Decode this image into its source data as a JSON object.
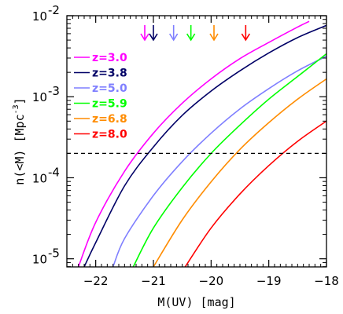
{
  "chart_data": {
    "type": "line",
    "xlabel": "M(UV)  [mag]",
    "ylabel": "n(<M)  [Mpc",
    "ylabel_superscript": "-3",
    "ylabel_close": "]",
    "xlim": [
      -22.5,
      -18
    ],
    "ylim_log10": [
      -5.1,
      -2
    ],
    "y_scale": "log",
    "x_ticks": [
      {
        "value": -22,
        "label": "−22"
      },
      {
        "value": -21,
        "label": "−21"
      },
      {
        "value": -20,
        "label": "−20"
      },
      {
        "value": -19,
        "label": "−19"
      },
      {
        "value": -18,
        "label": "−18"
      }
    ],
    "y_ticks": [
      {
        "log": -2,
        "base": "10",
        "exp": "-2"
      },
      {
        "log": -3,
        "base": "10",
        "exp": "-3"
      },
      {
        "log": -4,
        "base": "10",
        "exp": "-4"
      },
      {
        "log": -5,
        "base": "10",
        "exp": "-5"
      }
    ],
    "reference_line": {
      "y": 0.0002,
      "style": "dashed",
      "color": "#000000"
    },
    "legend_position": "top-left",
    "series": [
      {
        "name": "z=3.0",
        "color": "#ff00ff",
        "arrow_x": -21.15,
        "points": [
          [
            -22.3,
            -5.1
          ],
          [
            -22.0,
            -4.55
          ],
          [
            -21.5,
            -3.92
          ],
          [
            -21.0,
            -3.45
          ],
          [
            -20.5,
            -3.08
          ],
          [
            -20.0,
            -2.78
          ],
          [
            -19.5,
            -2.53
          ],
          [
            -19.0,
            -2.33
          ],
          [
            -18.5,
            -2.14
          ],
          [
            -18.3,
            -2.07
          ]
        ]
      },
      {
        "name": "z=3.8",
        "color": "#000066",
        "arrow_x": -21.0,
        "points": [
          [
            -22.2,
            -5.1
          ],
          [
            -22.0,
            -4.8
          ],
          [
            -21.5,
            -4.1
          ],
          [
            -21.0,
            -3.62
          ],
          [
            -20.5,
            -3.23
          ],
          [
            -20.0,
            -2.93
          ],
          [
            -19.5,
            -2.68
          ],
          [
            -19.0,
            -2.46
          ],
          [
            -18.5,
            -2.27
          ],
          [
            -18.0,
            -2.12
          ]
        ]
      },
      {
        "name": "z=5.0",
        "color": "#7f7fff",
        "arrow_x": -20.65,
        "points": [
          [
            -21.7,
            -5.1
          ],
          [
            -21.5,
            -4.75
          ],
          [
            -21.0,
            -4.22
          ],
          [
            -20.5,
            -3.8
          ],
          [
            -20.0,
            -3.45
          ],
          [
            -19.5,
            -3.15
          ],
          [
            -19.0,
            -2.9
          ],
          [
            -18.5,
            -2.68
          ],
          [
            -18.0,
            -2.5
          ]
        ]
      },
      {
        "name": "z=5.9",
        "color": "#00ff00",
        "arrow_x": -20.35,
        "points": [
          [
            -21.35,
            -5.1
          ],
          [
            -21.0,
            -4.62
          ],
          [
            -20.5,
            -4.12
          ],
          [
            -20.0,
            -3.7
          ],
          [
            -19.5,
            -3.35
          ],
          [
            -19.0,
            -3.03
          ],
          [
            -18.5,
            -2.75
          ],
          [
            -18.0,
            -2.47
          ]
        ]
      },
      {
        "name": "z=6.8",
        "color": "#ff8c00",
        "arrow_x": -19.95,
        "points": [
          [
            -21.0,
            -5.1
          ],
          [
            -20.5,
            -4.52
          ],
          [
            -20.0,
            -4.05
          ],
          [
            -19.5,
            -3.65
          ],
          [
            -19.0,
            -3.32
          ],
          [
            -18.5,
            -3.03
          ],
          [
            -18.0,
            -2.78
          ]
        ]
      },
      {
        "name": "z=8.0",
        "color": "#ff0000",
        "arrow_x": -19.4,
        "points": [
          [
            -20.45,
            -5.1
          ],
          [
            -20.0,
            -4.62
          ],
          [
            -19.5,
            -4.2
          ],
          [
            -19.0,
            -3.85
          ],
          [
            -18.5,
            -3.55
          ],
          [
            -18.0,
            -3.3
          ]
        ]
      }
    ]
  }
}
